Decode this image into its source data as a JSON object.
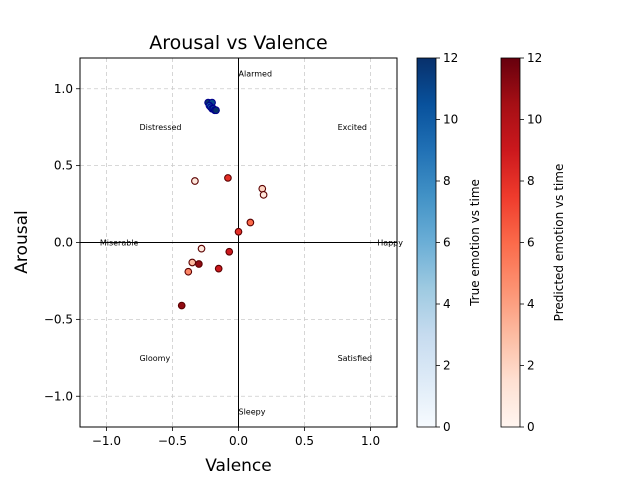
{
  "chart_data": {
    "type": "scatter",
    "title": "Arousal vs Valence",
    "xlabel": "Valence",
    "ylabel": "Arousal",
    "xlim": [
      -1.2,
      1.2
    ],
    "ylim": [
      -1.2,
      1.2
    ],
    "xticks": [
      -1.0,
      -0.5,
      0.0,
      0.5,
      1.0
    ],
    "xtick_labels": [
      "−1.0",
      "−0.5",
      "0.0",
      "0.5",
      "1.0"
    ],
    "yticks": [
      -1.0,
      -0.5,
      0.0,
      0.5,
      1.0
    ],
    "ytick_labels": [
      "−1.0",
      "−0.5",
      "0.0",
      "0.5",
      "1.0"
    ],
    "grid": true,
    "annotations": [
      {
        "text": "Alarmed",
        "x": 0.0,
        "y": 1.1
      },
      {
        "text": "Excited",
        "x": 0.75,
        "y": 0.75
      },
      {
        "text": "Happy",
        "x": 1.05,
        "y": 0.0
      },
      {
        "text": "Satisfied",
        "x": 0.75,
        "y": -0.75
      },
      {
        "text": "Sleepy",
        "x": 0.0,
        "y": -1.1
      },
      {
        "text": "Gloomy",
        "x": -0.75,
        "y": -0.75
      },
      {
        "text": "Miserable",
        "x": -1.05,
        "y": 0.0
      },
      {
        "text": "Distressed",
        "x": -0.75,
        "y": 0.75
      }
    ],
    "series": [
      {
        "colormap": "Blues",
        "points": [
          {
            "x": -0.23,
            "y": 0.91,
            "t": 12
          },
          {
            "x": -0.2,
            "y": 0.91,
            "t": 11
          },
          {
            "x": -0.22,
            "y": 0.89,
            "t": 10
          },
          {
            "x": -0.21,
            "y": 0.88,
            "t": 10
          },
          {
            "x": -0.2,
            "y": 0.87,
            "t": 11
          },
          {
            "x": -0.19,
            "y": 0.87,
            "t": 11
          },
          {
            "x": -0.18,
            "y": 0.86,
            "t": 12
          },
          {
            "x": -0.17,
            "y": 0.86,
            "t": 12
          }
        ]
      },
      {
        "colormap": "Reds",
        "points": [
          {
            "x": -0.33,
            "y": 0.4,
            "t": 1
          },
          {
            "x": -0.08,
            "y": 0.42,
            "t": 8
          },
          {
            "x": 0.18,
            "y": 0.35,
            "t": 2
          },
          {
            "x": 0.19,
            "y": 0.31,
            "t": 1
          },
          {
            "x": 0.09,
            "y": 0.13,
            "t": 6
          },
          {
            "x": 0.0,
            "y": 0.07,
            "t": 8
          },
          {
            "x": -0.28,
            "y": -0.04,
            "t": 1
          },
          {
            "x": -0.07,
            "y": -0.06,
            "t": 9
          },
          {
            "x": -0.35,
            "y": -0.13,
            "t": 3
          },
          {
            "x": -0.3,
            "y": -0.14,
            "t": 11
          },
          {
            "x": -0.15,
            "y": -0.17,
            "t": 9
          },
          {
            "x": -0.38,
            "y": -0.19,
            "t": 5
          },
          {
            "x": -0.43,
            "y": -0.41,
            "t": 11
          }
        ]
      }
    ],
    "colorbars": [
      {
        "label": "True emotion vs time",
        "colormap": "Blues",
        "range": [
          0,
          12
        ],
        "ticks": [
          0,
          2,
          4,
          6,
          8,
          10,
          12
        ]
      },
      {
        "label": "Predicted emotion vs time",
        "colormap": "Reds",
        "range": [
          0,
          12
        ],
        "ticks": [
          0,
          2,
          4,
          6,
          8,
          10,
          12
        ]
      }
    ],
    "colors": {
      "blue_edge": "#00008b",
      "red_edge": "#5a0000",
      "axis_line": "#000000",
      "grid": "#cccccc"
    }
  }
}
